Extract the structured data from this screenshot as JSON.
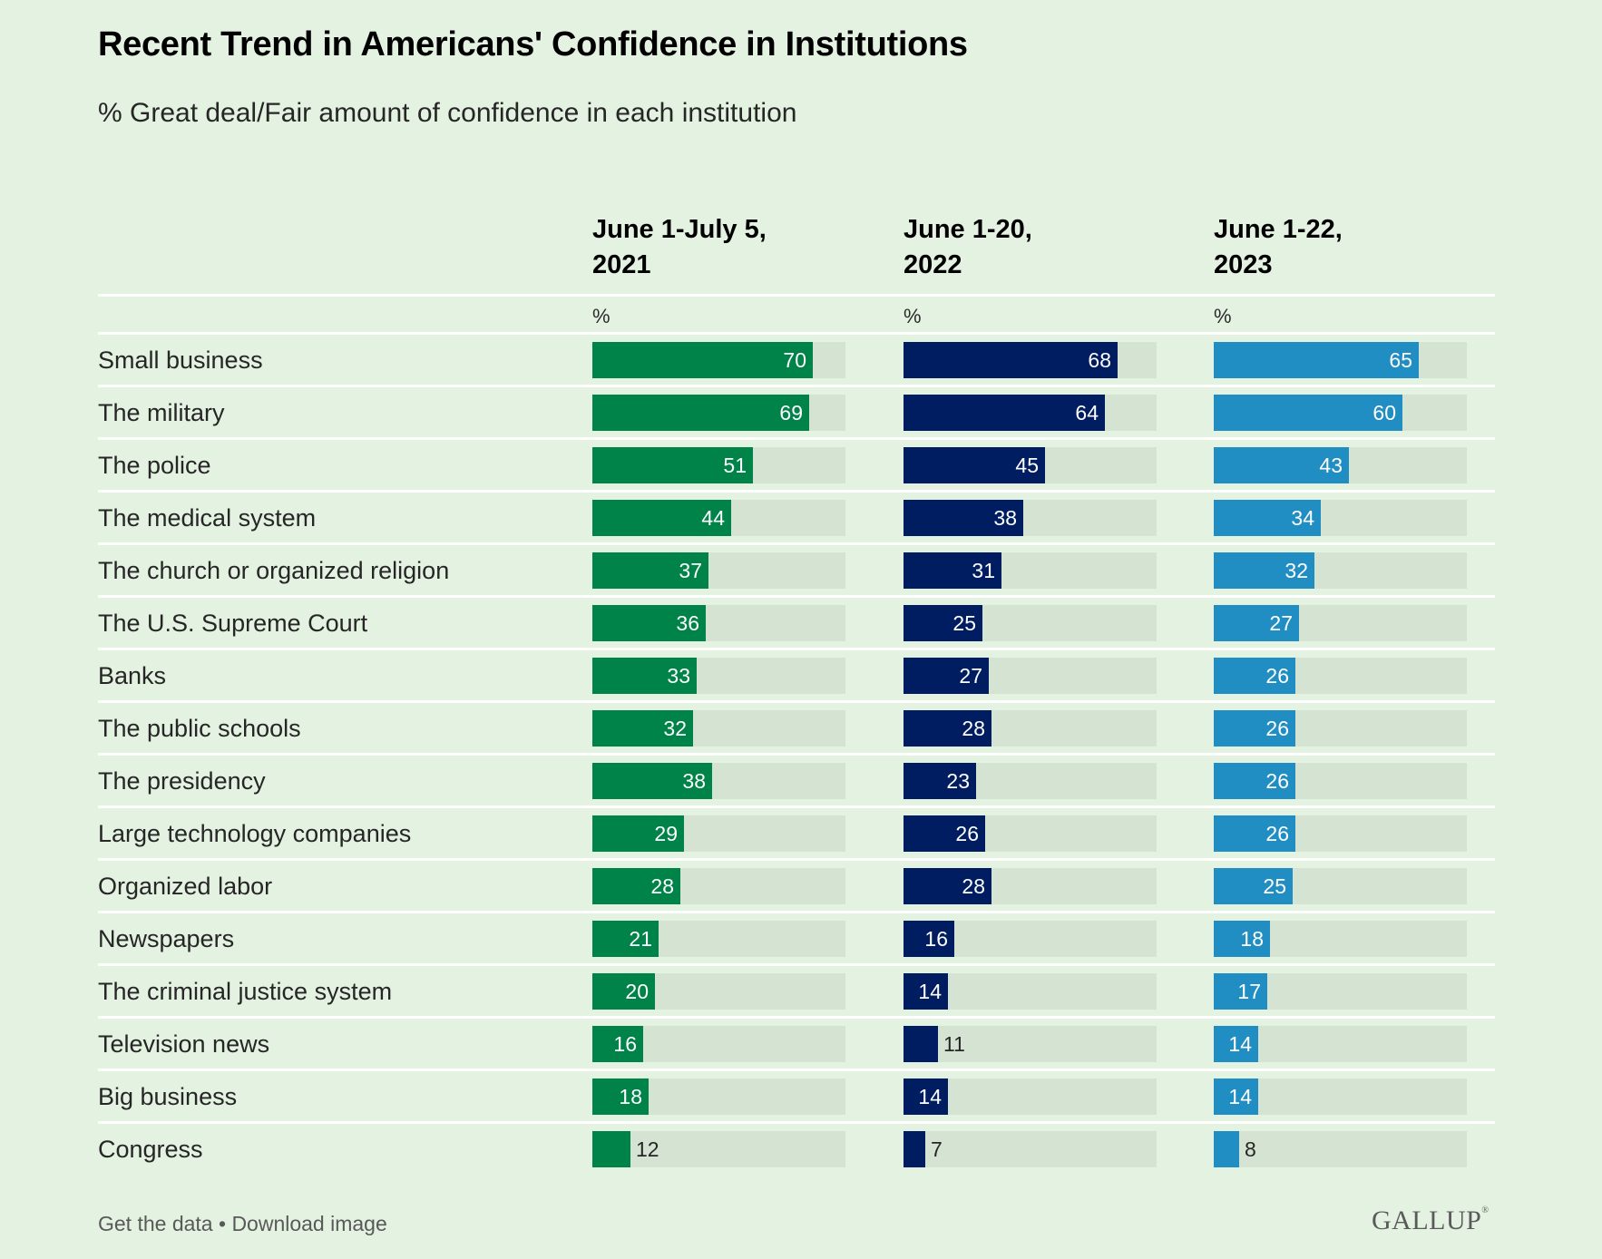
{
  "title": "Recent Trend in Americans' Confidence in Institutions",
  "subtitle": "% Great deal/Fair amount of confidence in each institution",
  "footer": {
    "get_data": "Get the data",
    "separator": "•",
    "download": "Download image"
  },
  "brand": "GALLUP",
  "colors": {
    "2021": "#008348",
    "2022": "#001d62",
    "2023": "#208dc3",
    "track": "#d5e3d2",
    "background": "#e4f2e1"
  },
  "chart_data": {
    "type": "bar",
    "orientation": "horizontal",
    "title": "Recent Trend in Americans' Confidence in Institutions",
    "subtitle": "% Great deal/Fair amount of confidence in each institution",
    "unit_label": "%",
    "xlim": [
      0,
      100
    ],
    "categories": [
      "Small business",
      "The military",
      "The police",
      "The medical system",
      "The church or organized religion",
      "The U.S. Supreme Court",
      "Banks",
      "The public schools",
      "The presidency",
      "Large technology companies",
      "Organized labor",
      "Newspapers",
      "The criminal justice system",
      "Television news",
      "Big business",
      "Congress"
    ],
    "series": [
      {
        "name": "June 1-July 5, 2021",
        "header_lines": [
          "June 1-July 5,",
          "2021"
        ],
        "color": "#008348",
        "values": [
          70,
          69,
          51,
          44,
          37,
          36,
          33,
          32,
          38,
          29,
          28,
          21,
          20,
          16,
          18,
          12
        ]
      },
      {
        "name": "June 1-20, 2022",
        "header_lines": [
          "June 1-20,",
          "2022"
        ],
        "color": "#001d62",
        "values": [
          68,
          64,
          45,
          38,
          31,
          25,
          27,
          28,
          23,
          26,
          28,
          16,
          14,
          11,
          14,
          7
        ]
      },
      {
        "name": "June 1-22, 2023",
        "header_lines": [
          "June 1-22,",
          "2023"
        ],
        "color": "#208dc3",
        "values": [
          65,
          60,
          43,
          34,
          32,
          27,
          26,
          26,
          26,
          26,
          25,
          18,
          17,
          14,
          14,
          8
        ]
      }
    ]
  }
}
